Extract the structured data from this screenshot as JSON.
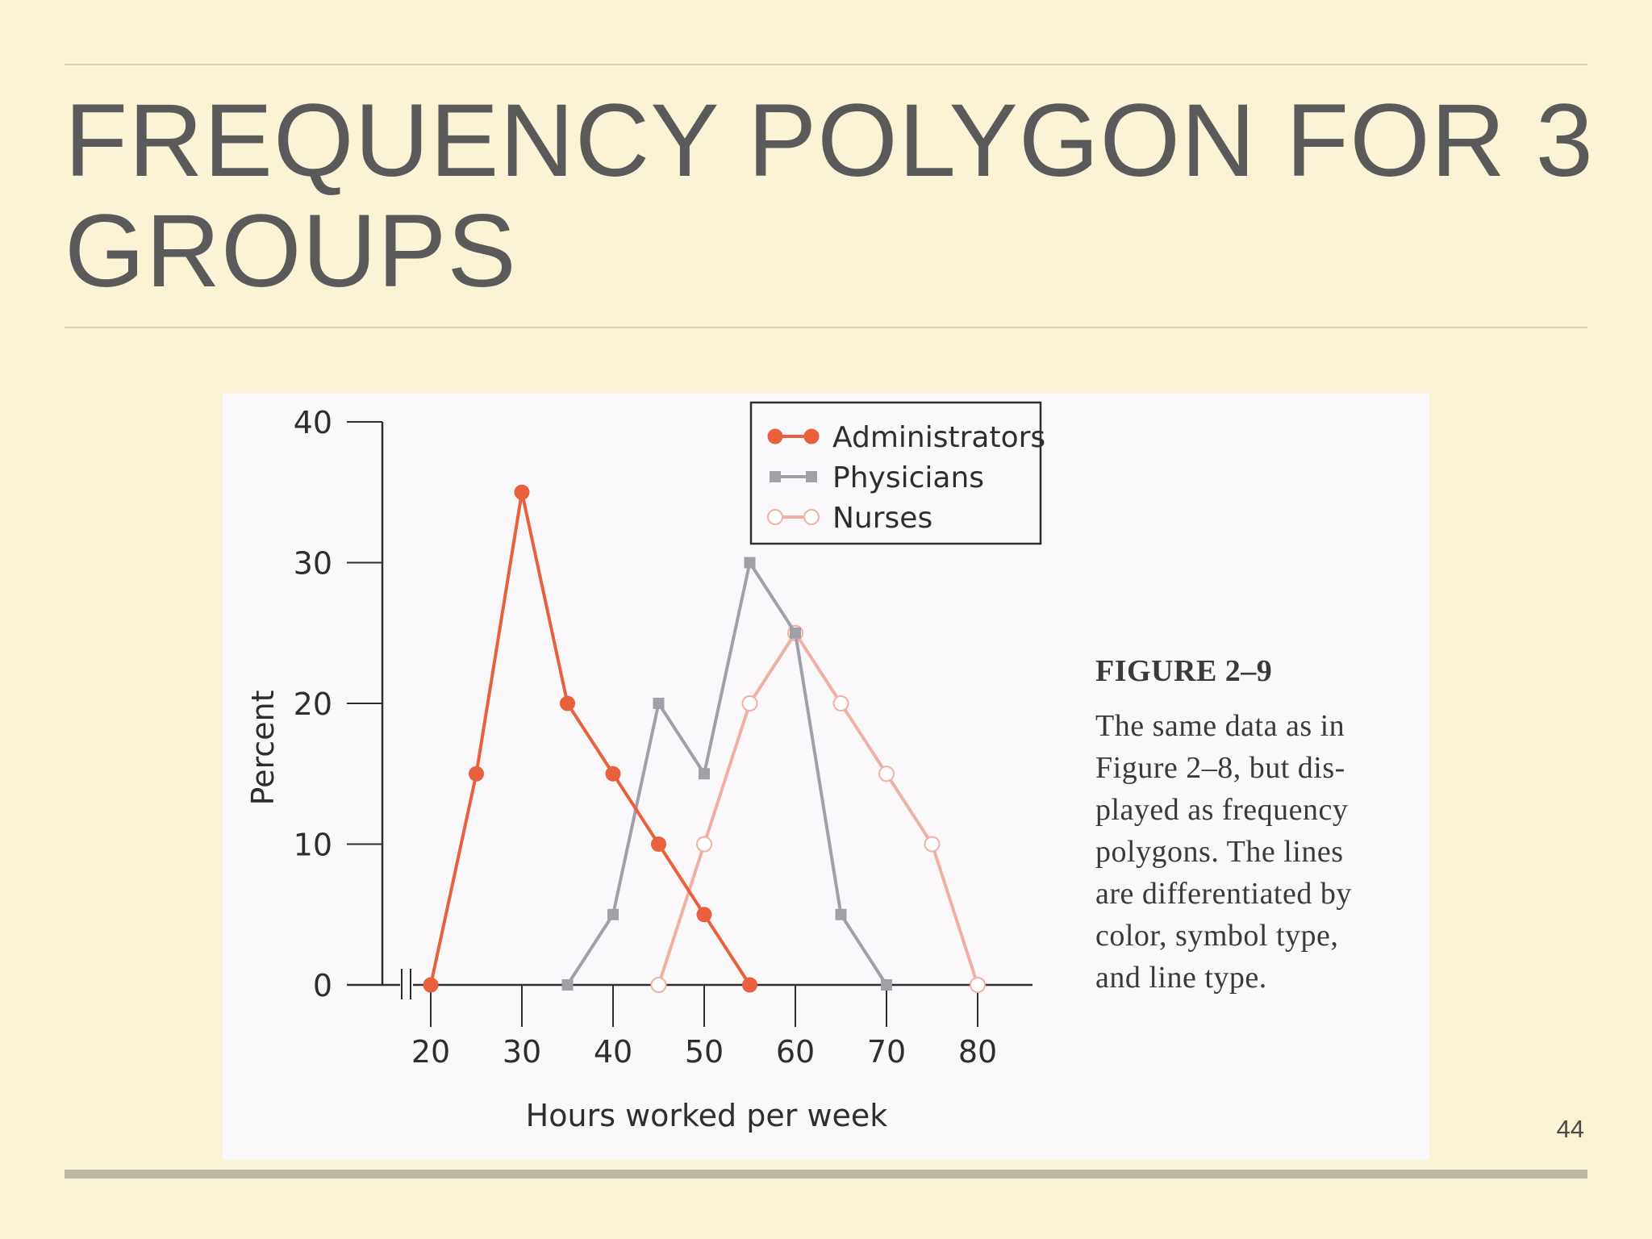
{
  "slide": {
    "title": "FREQUENCY POLYGON FOR 3 GROUPS",
    "page_number": "44"
  },
  "caption": {
    "figure_label": "FIGURE 2–9",
    "text": "The same data as in\nFigure 2–8, but dis-\nplayed as frequency\npolygons. The lines\nare differentiated by\ncolor, symbol type,\nand line type."
  },
  "colors": {
    "background": "#fbf3d6",
    "administrators": "#e8613c",
    "physicians": "#a0a0a8",
    "nurses": "#f0b0a4"
  },
  "chart_data": {
    "type": "line",
    "title": "",
    "xlabel": "Hours worked per week",
    "ylabel": "Percent",
    "xlim": [
      20,
      80
    ],
    "ylim": [
      0,
      40
    ],
    "x_ticks": [
      20,
      30,
      40,
      50,
      60,
      70,
      80
    ],
    "y_ticks": [
      0,
      10,
      20,
      30,
      40
    ],
    "axis_break": true,
    "grid": false,
    "legend_position": "top-right",
    "series": [
      {
        "name": "Administrators",
        "marker": "filled-circle",
        "color": "#e8613c",
        "points": [
          [
            20,
            0
          ],
          [
            25,
            15
          ],
          [
            30,
            35
          ],
          [
            35,
            20
          ],
          [
            40,
            15
          ],
          [
            45,
            10
          ],
          [
            50,
            5
          ],
          [
            55,
            0
          ]
        ]
      },
      {
        "name": "Physicians",
        "marker": "square",
        "color": "#a0a0a8",
        "points": [
          [
            35,
            0
          ],
          [
            40,
            5
          ],
          [
            45,
            20
          ],
          [
            50,
            15
          ],
          [
            55,
            30
          ],
          [
            60,
            25
          ],
          [
            65,
            5
          ],
          [
            70,
            0
          ]
        ]
      },
      {
        "name": "Nurses",
        "marker": "open-circle",
        "color": "#f0b0a4",
        "points": [
          [
            45,
            0
          ],
          [
            50,
            10
          ],
          [
            55,
            20
          ],
          [
            60,
            25
          ],
          [
            65,
            20
          ],
          [
            70,
            15
          ],
          [
            75,
            10
          ],
          [
            80,
            0
          ]
        ]
      }
    ]
  }
}
